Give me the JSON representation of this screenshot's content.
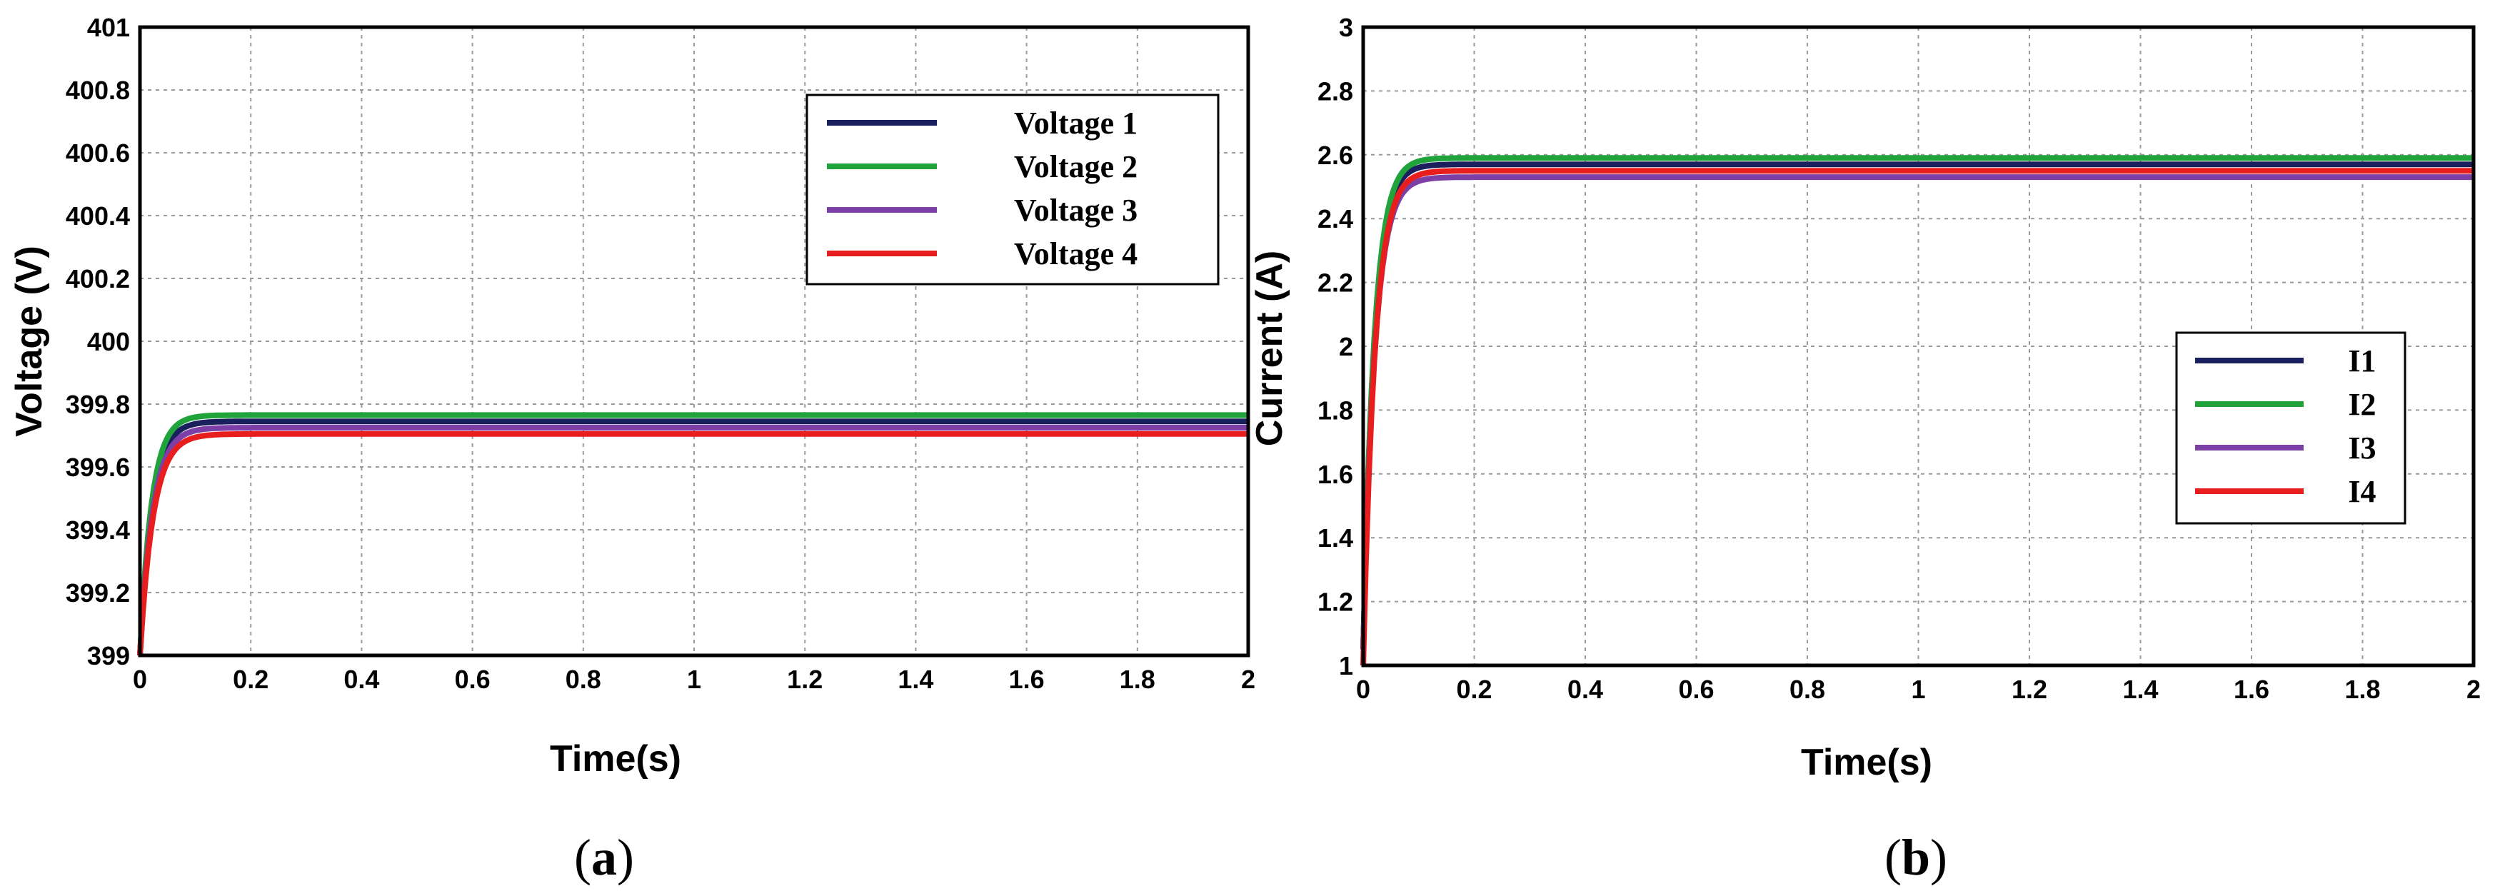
{
  "chart_data": [
    {
      "id": "a",
      "type": "line",
      "panel_label": "a",
      "title": "",
      "xlabel": "Time(s)",
      "ylabel": "Voltage (V)",
      "xlim": [
        0,
        2
      ],
      "ylim": [
        399,
        401
      ],
      "xticks": [
        0,
        0.2,
        0.4,
        0.6,
        0.8,
        1,
        1.2,
        1.4,
        1.6,
        1.8,
        2
      ],
      "xtick_labels": [
        "0",
        "0.2",
        "0.4",
        "0.6",
        "0.8",
        "1",
        "1.2",
        "1.4",
        "1.6",
        "1.8",
        "2"
      ],
      "yticks": [
        399,
        399.2,
        399.4,
        399.6,
        399.8,
        400,
        400.2,
        400.4,
        400.6,
        400.8,
        401
      ],
      "ytick_labels": [
        "399",
        "399.2",
        "399.4",
        "399.6",
        "399.8",
        "400",
        "400.2",
        "400.4",
        "400.6",
        "400.8",
        "401"
      ],
      "grid": true,
      "legend_position": "top-right",
      "series": [
        {
          "name": "Voltage 1",
          "color": "#1a1f5e",
          "start": 399.0,
          "final": 399.745,
          "tau": 0.022
        },
        {
          "name": "Voltage 2",
          "color": "#1fa33a",
          "start": 399.0,
          "final": 399.765,
          "tau": 0.021
        },
        {
          "name": "Voltage 3",
          "color": "#7b3fa6",
          "start": 399.0,
          "final": 399.725,
          "tau": 0.023
        },
        {
          "name": "Voltage 4",
          "color": "#e81e1e",
          "start": 399.0,
          "final": 399.705,
          "tau": 0.024
        }
      ]
    },
    {
      "id": "b",
      "type": "line",
      "panel_label": "b",
      "title": "",
      "xlabel": "Time(s)",
      "ylabel": "Current (A)",
      "xlim": [
        0,
        2
      ],
      "ylim": [
        1,
        3
      ],
      "xticks": [
        0,
        0.2,
        0.4,
        0.6,
        0.8,
        1,
        1.2,
        1.4,
        1.6,
        1.8,
        2
      ],
      "xtick_labels": [
        "0",
        "0.2",
        "0.4",
        "0.6",
        "0.8",
        "1",
        "1.2",
        "1.4",
        "1.6",
        "1.8",
        "2"
      ],
      "yticks": [
        1,
        1.2,
        1.4,
        1.6,
        1.8,
        2,
        2.2,
        2.4,
        2.6,
        2.8,
        3
      ],
      "ytick_labels": [
        "1",
        "1.2",
        "1.4",
        "1.6",
        "1.8",
        "2",
        "2.2",
        "2.4",
        "2.6",
        "2.8",
        "3"
      ],
      "grid": true,
      "legend_position": "center-right",
      "series": [
        {
          "name": "I1",
          "color": "#1a1f5e",
          "start": 1.05,
          "final": 2.57,
          "tau": 0.02
        },
        {
          "name": "I2",
          "color": "#1fa33a",
          "start": 1.05,
          "final": 2.59,
          "tau": 0.02
        },
        {
          "name": "I3",
          "color": "#7b3fa6",
          "start": 1.05,
          "final": 2.53,
          "tau": 0.021
        },
        {
          "name": "I4",
          "color": "#e81e1e",
          "start": 1.0,
          "final": 2.55,
          "tau": 0.021
        }
      ]
    }
  ]
}
